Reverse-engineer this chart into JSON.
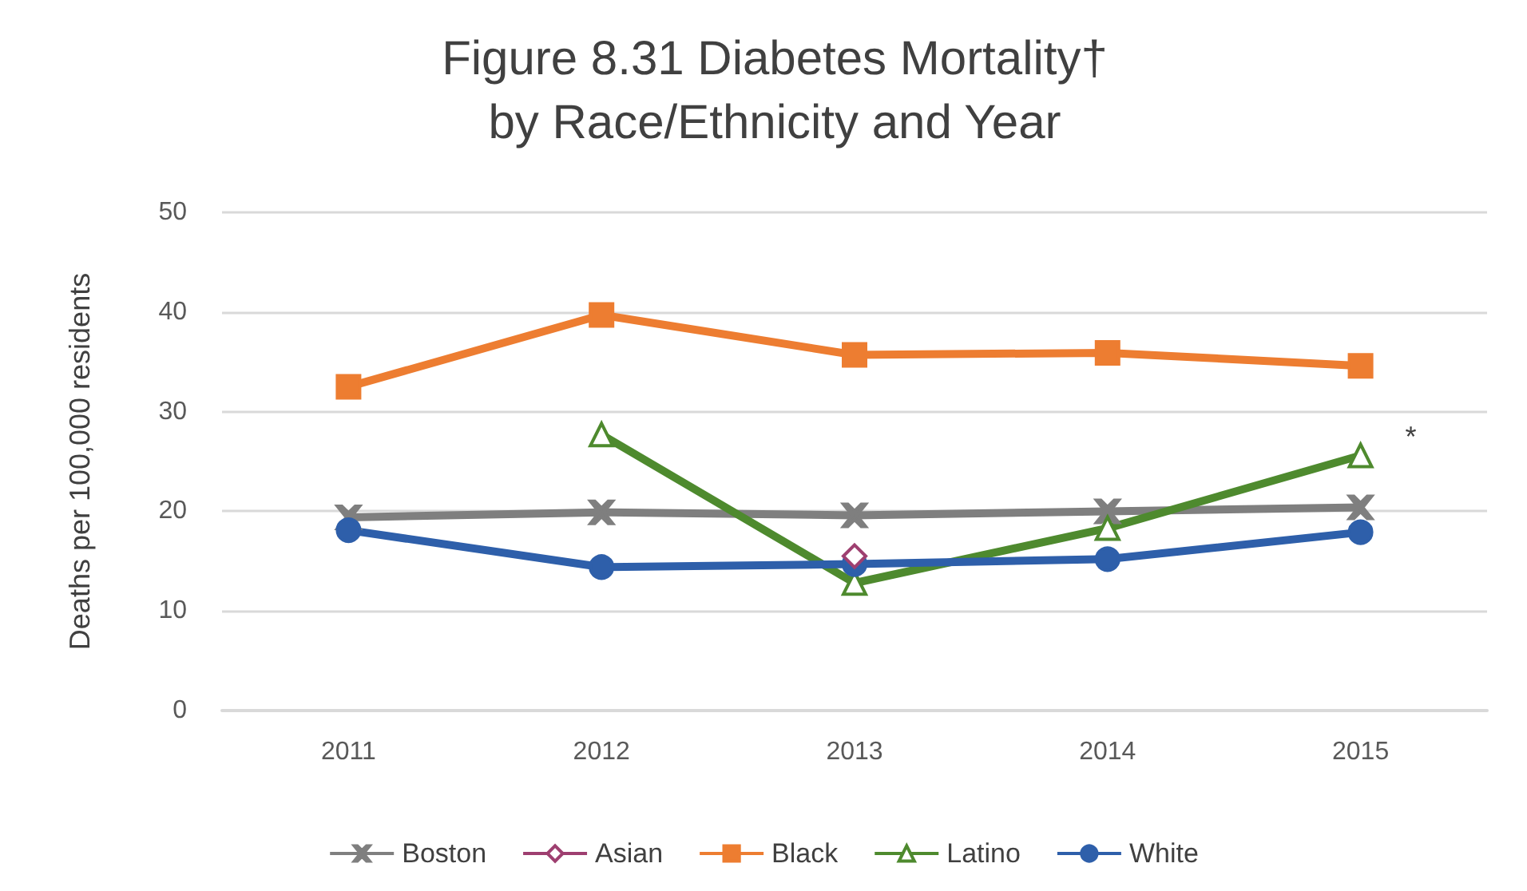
{
  "chart_data": {
    "type": "line",
    "title": "Figure 8.31 Diabetes Mortality†\nby Race/Ethnicity and Year",
    "ylabel": "Deaths per 100,000 residents",
    "categories": [
      "2011",
      "2012",
      "2013",
      "2014",
      "2015"
    ],
    "series": [
      {
        "name": "Boston",
        "color": "#7f7f7f",
        "marker": "cross",
        "values": [
          19.4,
          19.9,
          19.6,
          20.0,
          20.4
        ]
      },
      {
        "name": "Asian",
        "color": "#9e3f70",
        "marker": "diamond",
        "values": [
          null,
          null,
          15.5,
          null,
          null
        ]
      },
      {
        "name": "Black",
        "color": "#ed7d31",
        "marker": "square",
        "values": [
          32.5,
          39.7,
          35.7,
          35.9,
          34.6
        ]
      },
      {
        "name": "Latino",
        "color": "#4e8a2e",
        "marker": "triangle",
        "values": [
          null,
          27.7,
          12.8,
          18.3,
          25.6
        ]
      },
      {
        "name": "White",
        "color": "#2e5faa",
        "marker": "circle",
        "values": [
          18.1,
          14.4,
          14.7,
          15.2,
          17.9
        ]
      }
    ],
    "ylim": [
      0,
      50
    ],
    "yticks": [
      0,
      10,
      20,
      30,
      40,
      50
    ],
    "grid": "y",
    "legend": "bottom",
    "annotations": [
      {
        "text": "*",
        "x": "2015",
        "y": 25.6
      }
    ]
  }
}
